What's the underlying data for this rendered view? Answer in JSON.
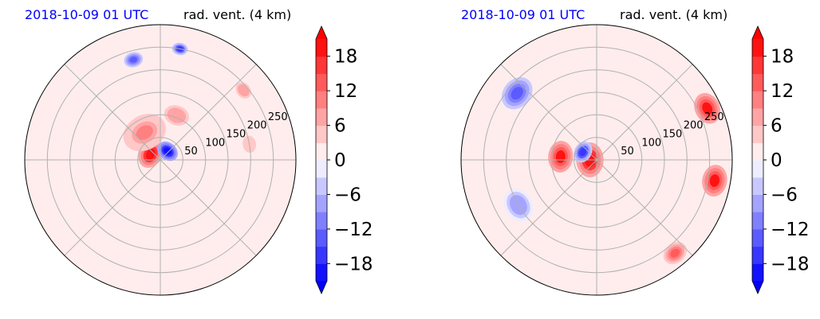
{
  "chart_data": [
    {
      "type": "heatmap",
      "projection": "polar",
      "date_label": "2018-10-09 01 UTC",
      "title": "rad. vent. (4 km)",
      "radial_ticks": [
        "50",
        "100",
        "150",
        "200",
        "250"
      ],
      "radial_tick_values": [
        50,
        100,
        150,
        200,
        250
      ],
      "rlim": [
        0,
        300
      ],
      "grid": true,
      "colorbar": {
        "vmin": -21,
        "vmax": 21,
        "step": 3,
        "ticks": [
          18,
          12,
          6,
          0,
          -6,
          -12,
          -18
        ],
        "tick_labels": [
          "18",
          "12",
          "6",
          "0",
          "−6",
          "−12",
          "−18"
        ],
        "extend": "both",
        "cmap": "bwr"
      },
      "features": [
        {
          "kind": "max",
          "r": 25,
          "deg": 150,
          "rad": 18,
          "v": 20
        },
        {
          "kind": "min",
          "r": 25,
          "deg": 50,
          "rad": 14,
          "v": -20
        },
        {
          "kind": "max",
          "r": 70,
          "deg": 120,
          "rad": 28,
          "v": 10
        },
        {
          "kind": "max",
          "r": 105,
          "deg": 70,
          "rad": 20,
          "v": 8
        },
        {
          "kind": "min",
          "r": 230,
          "deg": 105,
          "rad": 12,
          "v": -14
        },
        {
          "kind": "min",
          "r": 250,
          "deg": 80,
          "rad": 10,
          "v": -16
        },
        {
          "kind": "max",
          "r": 240,
          "deg": 40,
          "rad": 14,
          "v": 8
        },
        {
          "kind": "max",
          "r": 200,
          "deg": 10,
          "rad": 18,
          "v": 5
        }
      ]
    },
    {
      "type": "heatmap",
      "projection": "polar",
      "date_label": "2018-10-09 01 UTC",
      "title": "rad. vent. (4 km)",
      "radial_ticks": [
        "50",
        "100",
        "150",
        "200",
        "250"
      ],
      "radial_tick_values": [
        50,
        100,
        150,
        200,
        250
      ],
      "rlim": [
        0,
        300
      ],
      "grid": true,
      "colorbar": {
        "vmin": -21,
        "vmax": 21,
        "step": 3,
        "ticks": [
          18,
          12,
          6,
          0,
          -6,
          -12,
          -18
        ],
        "tick_labels": [
          "18",
          "12",
          "6",
          "0",
          "−6",
          "−12",
          "−18"
        ],
        "extend": "both",
        "cmap": "bwr"
      },
      "features": [
        {
          "kind": "max",
          "r": 15,
          "deg": 180,
          "rad": 22,
          "v": 20
        },
        {
          "kind": "min",
          "r": 35,
          "deg": 150,
          "rad": 14,
          "v": -16
        },
        {
          "kind": "max",
          "r": 80,
          "deg": 175,
          "rad": 20,
          "v": 19
        },
        {
          "kind": "max",
          "r": 270,
          "deg": 25,
          "rad": 20,
          "v": 19
        },
        {
          "kind": "max",
          "r": 265,
          "deg": -10,
          "rad": 20,
          "v": 19
        },
        {
          "kind": "max",
          "r": 270,
          "deg": -50,
          "rad": 16,
          "v": 14
        },
        {
          "kind": "min",
          "r": 230,
          "deg": 140,
          "rad": 22,
          "v": -14
        },
        {
          "kind": "min",
          "r": 200,
          "deg": -150,
          "rad": 22,
          "v": -8
        }
      ]
    }
  ]
}
